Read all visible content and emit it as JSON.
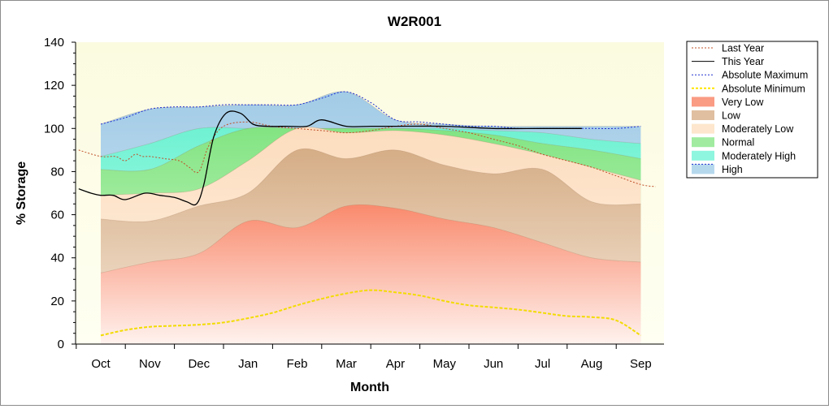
{
  "chart_data": {
    "type": "area",
    "title": "W2R001",
    "xlabel": "Month",
    "ylabel": "% Storage",
    "ylim": [
      0,
      140
    ],
    "yticks": [
      0,
      20,
      40,
      60,
      80,
      100,
      120,
      140
    ],
    "categories": [
      "Oct",
      "Nov",
      "Dec",
      "Jan",
      "Feb",
      "Mar",
      "Apr",
      "May",
      "Jun",
      "Jul",
      "Aug",
      "Sep"
    ],
    "grid": false,
    "legend_position": "right",
    "legend": [
      {
        "label": "Last Year",
        "kind": "line",
        "color": "#c0502a",
        "dash": "2,2"
      },
      {
        "label": "This Year",
        "kind": "line",
        "color": "#000000",
        "dash": ""
      },
      {
        "label": "Absolute Maximum",
        "kind": "line",
        "color": "#1f2fd0",
        "dash": "2,2"
      },
      {
        "label": "Absolute Minimum",
        "kind": "line",
        "color": "#ffe600",
        "dash": "3,2"
      },
      {
        "label": "Very Low",
        "kind": "fill",
        "color": "#f98a6d"
      },
      {
        "label": "Low",
        "kind": "fill",
        "color": "#d9b48f"
      },
      {
        "label": "Moderately Low",
        "kind": "fill",
        "color": "#fde2c4"
      },
      {
        "label": "Normal",
        "kind": "fill",
        "color": "#8fe88f"
      },
      {
        "label": "Moderately High",
        "kind": "fill",
        "color": "#7af5d8"
      },
      {
        "label": "High",
        "kind": "fill",
        "color": "#a9d1ea"
      }
    ],
    "band_x": [
      0,
      1,
      2,
      3,
      4,
      5,
      6,
      7,
      8,
      9,
      10,
      11
    ],
    "bands": {
      "very_low_top": [
        33,
        38,
        42,
        57,
        54,
        64,
        63,
        58,
        54,
        47,
        40,
        38
      ],
      "low_top": [
        58,
        57,
        64,
        70,
        90,
        86,
        90,
        83,
        79,
        81,
        66,
        65
      ],
      "moderately_low_top": [
        69,
        70,
        72,
        85,
        100,
        98,
        99,
        97,
        93,
        88,
        82,
        76
      ],
      "normal_top": [
        81,
        81,
        92,
        100,
        100,
        100,
        100,
        99,
        97,
        93,
        90,
        86
      ],
      "moderately_high_top": [
        87,
        93,
        100,
        100,
        100,
        100,
        100,
        100,
        99,
        98,
        95,
        93
      ],
      "high_top": [
        102,
        109,
        110,
        111,
        111,
        117,
        104,
        102,
        101,
        101,
        101,
        101
      ]
    },
    "absolute_minimum": {
      "x": [
        0,
        0.5,
        1,
        1.5,
        2,
        2.5,
        3,
        3.5,
        4,
        4.5,
        5,
        5.5,
        6,
        6.5,
        7,
        7.5,
        8,
        8.5,
        9,
        9.5,
        10,
        10.5,
        11
      ],
      "y": [
        4,
        6.5,
        8,
        8.5,
        9,
        10,
        12,
        14.5,
        18,
        21,
        23.5,
        25,
        24,
        22.5,
        20,
        18,
        17,
        16,
        14.5,
        13,
        12.5,
        11,
        4
      ]
    },
    "last_year": {
      "x": [
        -0.45,
        0,
        0.3,
        0.5,
        0.7,
        0.85,
        1,
        1.3,
        1.6,
        1.8,
        2,
        2.2,
        2.5,
        3,
        3.5,
        4,
        4.5,
        5,
        5.5,
        6,
        6.5,
        7,
        7.5,
        8,
        8.5,
        9,
        9.5,
        10,
        10.5,
        11,
        11.3
      ],
      "y": [
        90,
        87,
        87,
        85,
        88,
        87,
        87,
        86,
        85,
        82,
        80,
        92,
        101,
        103,
        101,
        100,
        99,
        98,
        99,
        101,
        102,
        100,
        98,
        95,
        92,
        88,
        85,
        82,
        78,
        74,
        73
      ]
    },
    "this_year": {
      "x": [
        -0.45,
        -0.2,
        0,
        0.25,
        0.5,
        0.9,
        1.2,
        1.5,
        1.75,
        1.95,
        2.1,
        2.3,
        2.55,
        2.85,
        3.1,
        3.4,
        3.8,
        4.2,
        4.5,
        5,
        5.5,
        6,
        7,
        8,
        9,
        9.8
      ],
      "y": [
        72,
        70,
        69,
        69,
        67,
        70,
        69,
        68,
        66,
        65,
        74,
        96,
        107,
        107,
        102,
        101,
        101,
        101,
        104,
        101,
        101,
        101,
        101,
        100,
        100,
        100
      ]
    },
    "absolute_maximum": {
      "x": [
        0,
        0.5,
        1,
        1.5,
        2,
        2.5,
        3,
        3.5,
        4,
        4.5,
        5,
        5.5,
        6,
        6.5,
        7,
        7.5,
        8,
        8.5,
        9,
        9.5,
        10,
        10.5,
        11
      ],
      "y": [
        102,
        105,
        109,
        110,
        110,
        111,
        111,
        111,
        111,
        114,
        117,
        112,
        104,
        103,
        102,
        101,
        101,
        100,
        100,
        100,
        100,
        100,
        101
      ]
    }
  }
}
